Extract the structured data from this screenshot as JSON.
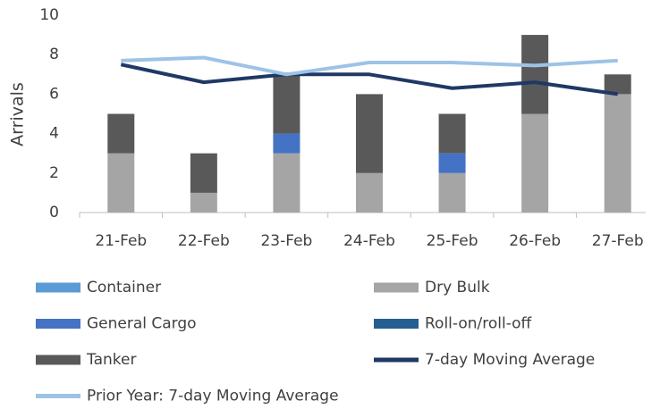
{
  "chart_data": {
    "type": "bar",
    "stacked": true,
    "y_label": "Arrivals",
    "categories": [
      "21-Feb",
      "22-Feb",
      "23-Feb",
      "24-Feb",
      "25-Feb",
      "26-Feb",
      "27-Feb"
    ],
    "ylim": [
      0,
      10
    ],
    "yticks": [
      0,
      2,
      4,
      6,
      8,
      10
    ],
    "grid": false,
    "series": [
      {
        "name": "Container",
        "type": "bar",
        "color": "#5b9bd5",
        "values": [
          0,
          0,
          0,
          0,
          0,
          0,
          0
        ]
      },
      {
        "name": "Dry Bulk",
        "type": "bar",
        "color": "#a5a5a5",
        "values": [
          3,
          1,
          3,
          2,
          2,
          5,
          6
        ]
      },
      {
        "name": "General Cargo",
        "type": "bar",
        "color": "#4472c4",
        "values": [
          0,
          0,
          1,
          0,
          1,
          0,
          0
        ]
      },
      {
        "name": "Roll-on/roll-off",
        "type": "bar",
        "color": "#255e91",
        "values": [
          0,
          0,
          0,
          0,
          0,
          0,
          0
        ]
      },
      {
        "name": "Tanker",
        "type": "bar",
        "color": "#595959",
        "values": [
          2,
          2,
          3,
          4,
          2,
          4,
          1
        ]
      },
      {
        "name": "7-day Moving Average",
        "type": "line",
        "color": "#203864",
        "values": [
          7.5,
          6.6,
          7.0,
          7.0,
          6.3,
          6.6,
          6.0
        ]
      },
      {
        "name": "Prior Year: 7-day Moving Average",
        "type": "line",
        "color": "#9dc3e6",
        "values": [
          7.7,
          7.85,
          7.0,
          7.6,
          7.6,
          7.45,
          7.7
        ]
      }
    ]
  }
}
